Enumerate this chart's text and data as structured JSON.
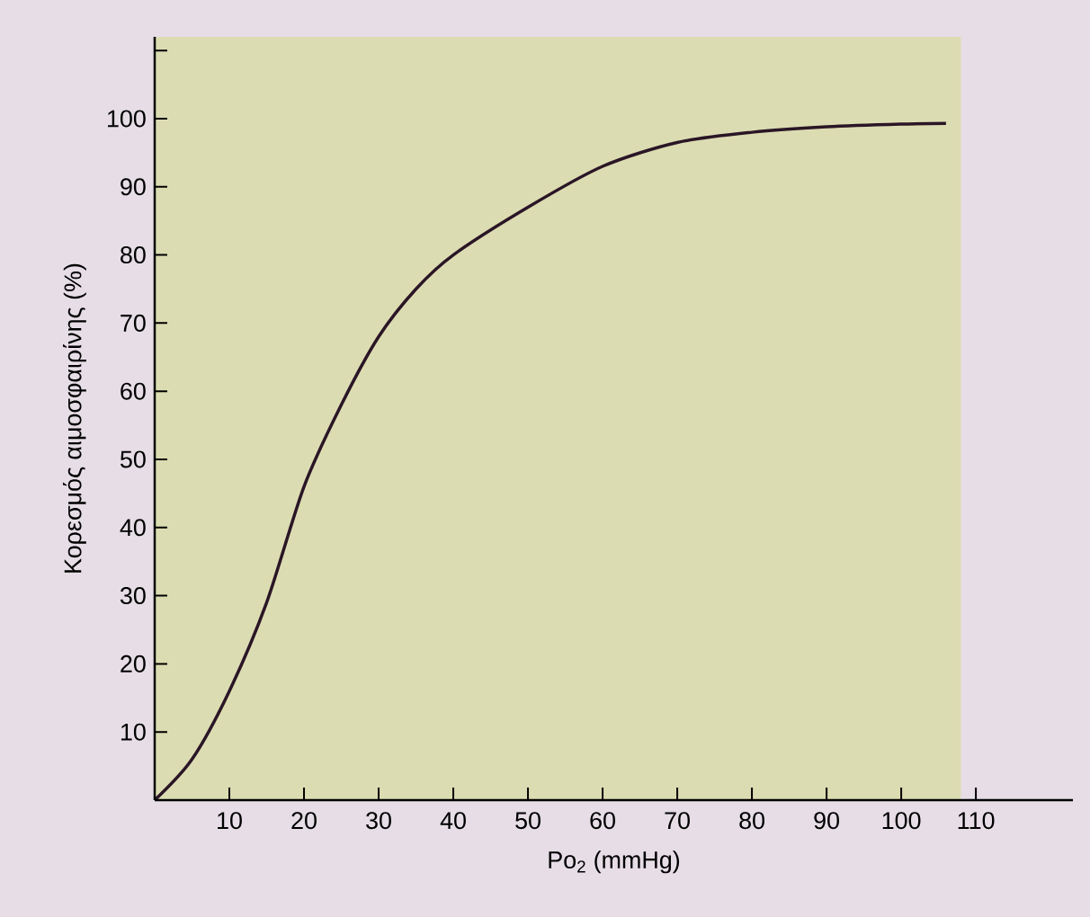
{
  "chart_data": {
    "type": "line",
    "xlabel": "Po$_{2}$ (mmHg)",
    "ylabel": "Κορεσμός αιμοσφαιρίνης (%)",
    "x": [
      0,
      5,
      10,
      15,
      20,
      25,
      30,
      35,
      40,
      50,
      60,
      70,
      80,
      90,
      100,
      106
    ],
    "series": [
      {
        "color": "#2a1626",
        "values": [
          0,
          6,
          16,
          29,
          46,
          58,
          68,
          75,
          80,
          87,
          93,
          96.5,
          98,
          98.8,
          99.2,
          99.3
        ]
      }
    ],
    "xlim": [
      0,
      123
    ],
    "ylim": [
      0,
      112
    ],
    "xticks": [
      10,
      20,
      30,
      40,
      50,
      60,
      70,
      80,
      90,
      100,
      110
    ],
    "yticks": [
      10,
      20,
      30,
      40,
      50,
      60,
      70,
      80,
      90,
      100,
      {
        "value": 110,
        "label": null
      }
    ],
    "bands": [
      {
        "axis": "x",
        "from": 0,
        "to": 108,
        "color": "#dcdcb2"
      }
    ],
    "marker": "none",
    "line_style": "solid"
  }
}
